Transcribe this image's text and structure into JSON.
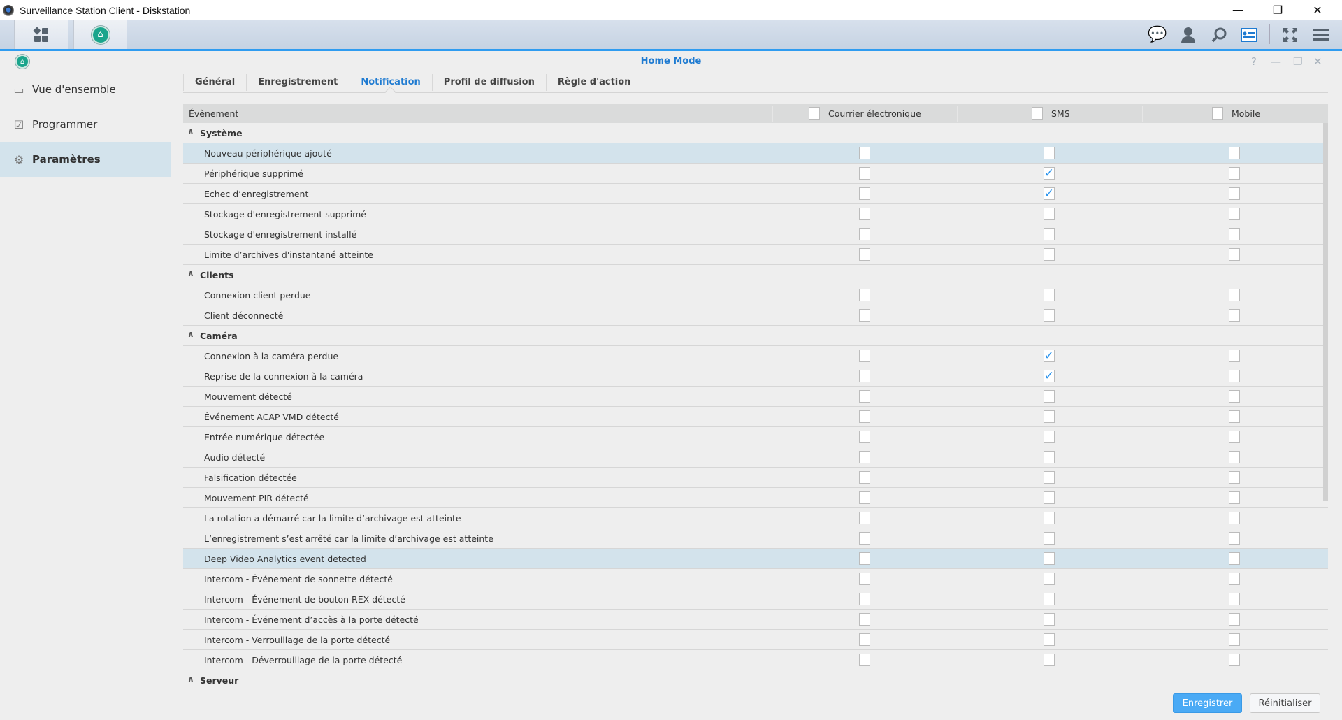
{
  "window": {
    "title": "Surveillance Station Client - Diskstation",
    "minimize": "—",
    "restore": "❐",
    "close": "✕"
  },
  "toolbar": {
    "icons": [
      "chat-icon",
      "user-icon",
      "search-icon",
      "info-card-icon",
      "fullscreen-icon",
      "menu-icon"
    ]
  },
  "app_window": {
    "title": "Home Mode",
    "controls": {
      "help": "?",
      "minimize": "—",
      "restore": "❐",
      "close": "✕"
    }
  },
  "sidebar": {
    "items": [
      {
        "label": "Vue d'ensemble",
        "icon": "overview-icon"
      },
      {
        "label": "Programmer",
        "icon": "calendar-icon"
      },
      {
        "label": "Paramètres",
        "icon": "gear-icon",
        "active": true
      }
    ]
  },
  "tabs": [
    {
      "label": "Général"
    },
    {
      "label": "Enregistrement"
    },
    {
      "label": "Notification",
      "active": true
    },
    {
      "label": "Profil de diffusion"
    },
    {
      "label": "Règle d'action"
    }
  ],
  "grid": {
    "headers": {
      "event": "Évènement",
      "email": "Courrier électronique",
      "sms": "SMS",
      "mobile": "Mobile"
    },
    "check_color": "#2d95ee",
    "groups": [
      {
        "name": "Système",
        "rows": [
          {
            "label": "Nouveau périphérique ajouté",
            "email": false,
            "sms": false,
            "mobile": false,
            "selected": true
          },
          {
            "label": "Périphérique supprimé",
            "email": false,
            "sms": true,
            "mobile": false
          },
          {
            "label": "Echec d’enregistrement",
            "email": false,
            "sms": true,
            "mobile": false
          },
          {
            "label": "Stockage d'enregistrement supprimé",
            "email": false,
            "sms": false,
            "mobile": false
          },
          {
            "label": "Stockage d'enregistrement installé",
            "email": false,
            "sms": false,
            "mobile": false
          },
          {
            "label": "Limite d’archives d'instantané atteinte",
            "email": false,
            "sms": false,
            "mobile": false
          }
        ]
      },
      {
        "name": "Clients",
        "rows": [
          {
            "label": "Connexion client perdue",
            "email": false,
            "sms": false,
            "mobile": false
          },
          {
            "label": "Client déconnecté",
            "email": false,
            "sms": false,
            "mobile": false
          }
        ]
      },
      {
        "name": "Caméra",
        "rows": [
          {
            "label": "Connexion à la caméra perdue",
            "email": false,
            "sms": true,
            "mobile": false
          },
          {
            "label": "Reprise de la connexion à la caméra",
            "email": false,
            "sms": true,
            "mobile": false
          },
          {
            "label": "Mouvement détecté",
            "email": false,
            "sms": false,
            "mobile": false
          },
          {
            "label": "Événement ACAP VMD détecté",
            "email": false,
            "sms": false,
            "mobile": false
          },
          {
            "label": "Entrée numérique détectée",
            "email": false,
            "sms": false,
            "mobile": false
          },
          {
            "label": "Audio détecté",
            "email": false,
            "sms": false,
            "mobile": false
          },
          {
            "label": "Falsification détectée",
            "email": false,
            "sms": false,
            "mobile": false
          },
          {
            "label": "Mouvement PIR détecté",
            "email": false,
            "sms": false,
            "mobile": false
          },
          {
            "label": "La rotation a démarré car la limite d’archivage est atteinte",
            "email": false,
            "sms": false,
            "mobile": false
          },
          {
            "label": "L’enregistrement s’est arrêté car la limite d’archivage est atteinte",
            "email": false,
            "sms": false,
            "mobile": false
          },
          {
            "label": "Deep Video Analytics event detected",
            "email": false,
            "sms": false,
            "mobile": false,
            "selected": true
          },
          {
            "label": "Intercom - Événement de sonnette détecté",
            "email": false,
            "sms": false,
            "mobile": false
          },
          {
            "label": "Intercom - Événement de bouton REX détecté",
            "email": false,
            "sms": false,
            "mobile": false
          },
          {
            "label": "Intercom - Événement d’accès à la porte détecté",
            "email": false,
            "sms": false,
            "mobile": false
          },
          {
            "label": "Intercom - Verrouillage de la porte détecté",
            "email": false,
            "sms": false,
            "mobile": false
          },
          {
            "label": "Intercom - Déverrouillage de la porte détecté",
            "email": false,
            "sms": false,
            "mobile": false
          }
        ]
      },
      {
        "name": "Serveur",
        "rows": []
      }
    ]
  },
  "buttons": {
    "save": "Enregistrer",
    "reset": "Réinitialiser"
  },
  "colors": {
    "accent": "#1f7bd1",
    "primary_button": "#4aaaf5",
    "selection": "#d3e3ec"
  }
}
